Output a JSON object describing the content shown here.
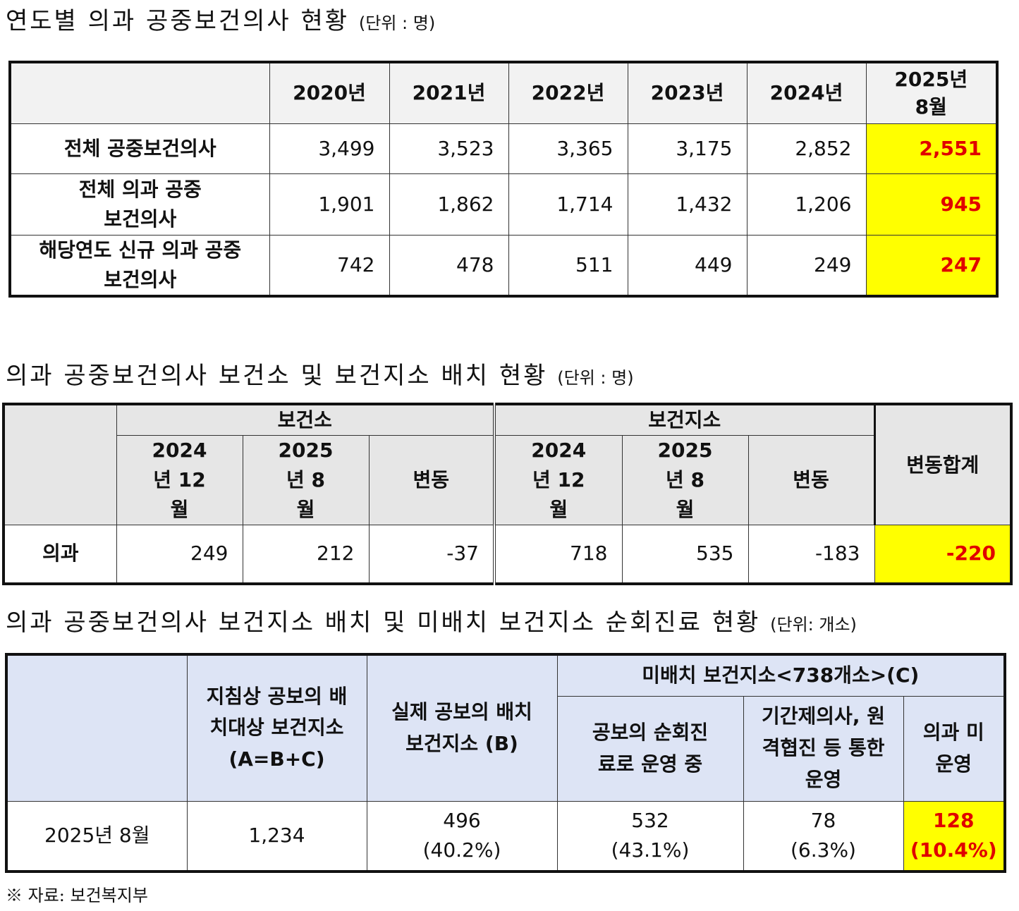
{
  "section1": {
    "title": "연도별 의과 공중보건의사 현황",
    "unit": "(단위 : 명)",
    "headers": [
      "",
      "2020년",
      "2021년",
      "2022년",
      "2023년",
      "2024년",
      "2025년 8월"
    ],
    "rows": [
      {
        "label": "전체 공중보건의사",
        "values": [
          "3,499",
          "3,523",
          "3,365",
          "3,175",
          "2,852",
          "2,551"
        ]
      },
      {
        "label": "전체 의과 공중보건의사",
        "values": [
          "1,901",
          "1,862",
          "1,714",
          "1,432",
          "1,206",
          "945"
        ]
      },
      {
        "label": "해당연도 신규 의과 공중보건의사",
        "values": [
          "742",
          "478",
          "511",
          "449",
          "249",
          "247"
        ]
      }
    ]
  },
  "section2": {
    "title": "의과 공중보건의사 보건소 및 보건지소 배치 현황",
    "unit": "(단위 : 명)",
    "group1": "보건소",
    "group2": "보건지소",
    "sub_headers": [
      "2024년 12월",
      "2025년 8월",
      "변동",
      "2024년 12월",
      "2025년 8월",
      "변동"
    ],
    "total_header": "변동합계",
    "row": {
      "label": "의과",
      "values": [
        "249",
        "212",
        "-37",
        "718",
        "535",
        "-183",
        "-220"
      ]
    }
  },
  "section3": {
    "title": "의과 공중보건의사 보건지소 배치 및 미배치 보건지소 순회진료 현황",
    "unit": "(단위: 개소)",
    "headers": {
      "a": "지침상 공보의 배치대상 보건지소 (A=B+C)",
      "b": "실제 공보의 배치 보건지소 (B)",
      "c_group": "미배치 보건지소<738개소>(C)",
      "c1": "공보의 순회진료로 운영 중",
      "c2": "기간제의사, 원격협진 등 통한 운영",
      "c3": "의과 미운영"
    },
    "row": {
      "label": "2025년 8월",
      "a": "1,234",
      "b": "496",
      "b_pct": "(40.2%)",
      "c1": "532",
      "c1_pct": "(43.1%)",
      "c2": "78",
      "c2_pct": "(6.3%)",
      "c3": "128",
      "c3_pct": "(10.4%)"
    }
  },
  "source_note": "※ 자료: 보건복지부",
  "colors": {
    "highlight_bg": "#ffff00",
    "highlight_text": "#e00000",
    "header_gray": "#f2f2f2",
    "header_blue": "#dde4f5"
  }
}
